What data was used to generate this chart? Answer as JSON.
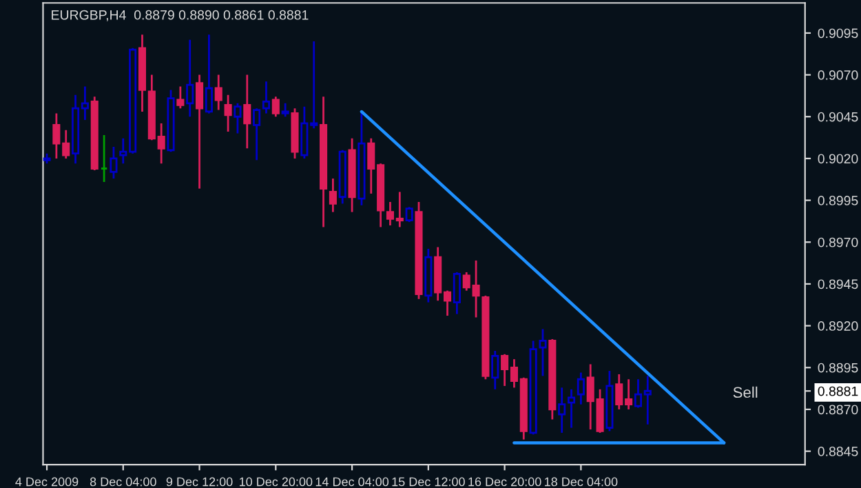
{
  "chart_data": {
    "type": "candlestick",
    "title": "EURGBP,H4  0.8879 0.8890 0.8861 0.8881",
    "categories": [
      "4 Dec 2009",
      null,
      null,
      null,
      null,
      null,
      null,
      null,
      "8 Dec 04:00",
      null,
      null,
      null,
      null,
      null,
      null,
      null,
      "9 Dec 12:00",
      null,
      null,
      null,
      null,
      null,
      null,
      null,
      "10 Dec 20:00",
      null,
      null,
      null,
      null,
      null,
      null,
      null,
      "14 Dec 04:00",
      null,
      null,
      null,
      null,
      null,
      null,
      null,
      "15 Dec 12:00",
      null,
      null,
      null,
      null,
      null,
      null,
      null,
      "16 Dec 20:00",
      null,
      null,
      null,
      null,
      null,
      null,
      null,
      "18 Dec 04:00",
      null,
      null,
      null,
      null,
      null,
      null,
      null,
      null,
      null,
      null,
      null,
      null,
      null,
      null,
      null,
      null,
      null,
      null,
      null,
      null,
      null,
      null,
      null
    ],
    "ohlc": [
      [
        0.9019,
        0.9023,
        0.9017,
        0.902
      ],
      [
        0.904,
        0.9047,
        0.902,
        0.9029
      ],
      [
        0.9029,
        0.9037,
        0.902,
        0.9022
      ],
      [
        0.9023,
        0.9058,
        0.9017,
        0.905
      ],
      [
        0.905,
        0.9063,
        0.9043,
        0.9053
      ],
      [
        0.9054,
        0.9057,
        0.9013,
        0.9014
      ],
      [
        0.9014,
        0.9034,
        0.9006,
        0.9014
      ],
      [
        0.9012,
        0.9027,
        0.9008,
        0.902
      ],
      [
        0.9022,
        0.9032,
        0.9017,
        0.9024
      ],
      [
        0.9024,
        0.9086,
        0.9023,
        0.9085
      ],
      [
        0.9086,
        0.9094,
        0.9048,
        0.9061
      ],
      [
        0.906,
        0.907,
        0.9031,
        0.9032
      ],
      [
        0.9033,
        0.9041,
        0.9017,
        0.9026
      ],
      [
        0.9025,
        0.9061,
        0.9024,
        0.9056
      ],
      [
        0.9055,
        0.9063,
        0.905,
        0.9052
      ],
      [
        0.9053,
        0.9091,
        0.9045,
        0.9064
      ],
      [
        0.9065,
        0.907,
        0.9002,
        0.905
      ],
      [
        0.9048,
        0.9094,
        0.9047,
        0.9062
      ],
      [
        0.9062,
        0.907,
        0.9049,
        0.9055
      ],
      [
        0.9052,
        0.9058,
        0.9036,
        0.9046
      ],
      [
        0.9045,
        0.9053,
        0.9035,
        0.9051
      ],
      [
        0.9052,
        0.907,
        0.9026,
        0.9041
      ],
      [
        0.904,
        0.905,
        0.9019,
        0.9049
      ],
      [
        0.905,
        0.9066,
        0.9047,
        0.9054
      ],
      [
        0.9055,
        0.9057,
        0.9045,
        0.9047
      ],
      [
        0.9047,
        0.9053,
        0.9045,
        0.9048
      ],
      [
        0.9047,
        0.905,
        0.902,
        0.9024
      ],
      [
        0.9022,
        0.9051,
        0.902,
        0.9041
      ],
      [
        0.904,
        0.909,
        0.9038,
        0.9041
      ],
      [
        0.904,
        0.9057,
        0.8979,
        0.9002
      ],
      [
        0.9,
        0.9008,
        0.8988,
        0.8993
      ],
      [
        0.8997,
        0.9025,
        0.8993,
        0.9024
      ],
      [
        0.9025,
        0.9032,
        0.8988,
        0.8997
      ],
      [
        0.8996,
        0.9048,
        0.8992,
        0.9029
      ],
      [
        0.9029,
        0.9032,
        0.8999,
        0.9014
      ],
      [
        0.9016,
        0.9017,
        0.8979,
        0.8989
      ],
      [
        0.8988,
        0.8994,
        0.898,
        0.8984
      ],
      [
        0.8984,
        0.9,
        0.8979,
        0.8983
      ],
      [
        0.8983,
        0.8991,
        0.8982,
        0.899
      ],
      [
        0.8988,
        0.8994,
        0.8936,
        0.8939
      ],
      [
        0.8938,
        0.8966,
        0.8934,
        0.8961
      ],
      [
        0.8961,
        0.8967,
        0.8935,
        0.894
      ],
      [
        0.894,
        0.8941,
        0.8926,
        0.8935
      ],
      [
        0.8934,
        0.8952,
        0.8927,
        0.8951
      ],
      [
        0.895,
        0.8952,
        0.8941,
        0.8943
      ],
      [
        0.8944,
        0.8959,
        0.8925,
        0.8938
      ],
      [
        0.8937,
        0.8938,
        0.8888,
        0.889
      ],
      [
        0.8889,
        0.8905,
        0.8882,
        0.8902
      ],
      [
        0.8902,
        0.8903,
        0.8884,
        0.8894
      ],
      [
        0.8895,
        0.89,
        0.8883,
        0.8887
      ],
      [
        0.8888,
        0.8889,
        0.8852,
        0.8857
      ],
      [
        0.8856,
        0.8911,
        0.8855,
        0.8906
      ],
      [
        0.8907,
        0.8918,
        0.889,
        0.8911
      ],
      [
        0.8911,
        0.8912,
        0.8864,
        0.887
      ],
      [
        0.8867,
        0.8883,
        0.8856,
        0.8873
      ],
      [
        0.8874,
        0.8882,
        0.8859,
        0.8877
      ],
      [
        0.8879,
        0.8892,
        0.8873,
        0.8888
      ],
      [
        0.8889,
        0.8897,
        0.8858,
        0.8875
      ],
      [
        0.8876,
        0.8882,
        0.8856,
        0.8857
      ],
      [
        0.8859,
        0.8893,
        0.8857,
        0.8884
      ],
      [
        0.8885,
        0.8891,
        0.887,
        0.8873
      ],
      [
        0.8876,
        0.8888,
        0.887,
        0.8873
      ],
      [
        0.8872,
        0.8888,
        0.8871,
        0.8879
      ],
      [
        0.8879,
        0.889,
        0.8861,
        0.8881
      ],
      null,
      null,
      null,
      null,
      null,
      null,
      null,
      null,
      null,
      null,
      null,
      null,
      null,
      null,
      null,
      null
    ],
    "colors": [
      "#0000c8",
      "#dc1e5a",
      "#dc1e5a",
      "#0000c8",
      "#0000c8",
      "#dc1e5a",
      "#00a000",
      "#0000c8",
      "#0000c8",
      "#0000c8",
      "#dc1e5a",
      "#dc1e5a",
      "#dc1e5a",
      "#0000c8",
      "#dc1e5a",
      "#0000c8",
      "#dc1e5a",
      "#0000c8",
      "#dc1e5a",
      "#dc1e5a",
      "#0000c8",
      "#dc1e5a",
      "#0000c8",
      "#0000c8",
      "#dc1e5a",
      "#0000c8",
      "#dc1e5a",
      "#0000c8",
      "#0000c8",
      "#dc1e5a",
      "#dc1e5a",
      "#0000c8",
      "#dc1e5a",
      "#0000c8",
      "#dc1e5a",
      "#dc1e5a",
      "#dc1e5a",
      "#dc1e5a",
      "#0000c8",
      "#dc1e5a",
      "#0000c8",
      "#dc1e5a",
      "#dc1e5a",
      "#0000c8",
      "#dc1e5a",
      "#dc1e5a",
      "#dc1e5a",
      "#0000c8",
      "#dc1e5a",
      "#dc1e5a",
      "#dc1e5a",
      "#0000c8",
      "#0000c8",
      "#dc1e5a",
      "#0000c8",
      "#0000c8",
      "#0000c8",
      "#dc1e5a",
      "#dc1e5a",
      "#0000c8",
      "#dc1e5a",
      "#dc1e5a",
      "#0000c8",
      "#0000c8",
      null,
      null,
      null,
      null,
      null,
      null,
      null,
      null,
      null,
      null,
      null,
      null,
      null,
      null,
      null,
      null
    ],
    "series": [
      {
        "type": "line",
        "color": "#1e90ff",
        "values": [
          null,
          null,
          null,
          null,
          null,
          null,
          null,
          null,
          null,
          null,
          null,
          null,
          null,
          null,
          null,
          null,
          null,
          null,
          null,
          null,
          null,
          null,
          null,
          null,
          null,
          null,
          null,
          null,
          null,
          null,
          null,
          null,
          null,
          0.9048,
          null,
          null,
          null,
          null,
          null,
          null,
          null,
          null,
          null,
          null,
          null,
          null,
          null,
          null,
          null,
          null,
          null,
          null,
          null,
          null,
          null,
          null,
          null,
          null,
          null,
          null,
          null,
          null,
          null,
          null,
          null,
          null,
          null,
          null,
          null,
          null,
          null,
          0.885,
          null,
          null,
          null,
          null,
          null,
          null,
          null,
          null
        ]
      },
      {
        "type": "line",
        "color": "#1e90ff",
        "values": [
          null,
          null,
          null,
          null,
          null,
          null,
          null,
          null,
          null,
          null,
          null,
          null,
          null,
          null,
          null,
          null,
          null,
          null,
          null,
          null,
          null,
          null,
          null,
          null,
          null,
          null,
          null,
          null,
          null,
          null,
          null,
          null,
          null,
          null,
          null,
          null,
          null,
          null,
          null,
          null,
          null,
          null,
          null,
          null,
          null,
          null,
          null,
          null,
          null,
          0.885,
          null,
          null,
          null,
          null,
          null,
          null,
          null,
          null,
          null,
          null,
          null,
          null,
          null,
          null,
          null,
          null,
          null,
          null,
          null,
          null,
          null,
          0.885,
          null,
          null,
          null,
          null,
          null,
          null,
          null,
          null
        ]
      }
    ],
    "ylim": [
      0.8837,
      0.9113
    ],
    "yticks": [
      {
        "value": 0.8845,
        "label": "0.8845"
      },
      {
        "value": 0.887,
        "label": "0.8870"
      },
      {
        "value": 0.8881,
        "label": "0.8881"
      },
      {
        "value": 0.8895,
        "label": "0.8895"
      },
      {
        "value": 0.892,
        "label": "0.8920"
      },
      {
        "value": 0.8945,
        "label": "0.8945"
      },
      {
        "value": 0.897,
        "label": "0.8970"
      },
      {
        "value": 0.8995,
        "label": "0.8995"
      },
      {
        "value": 0.902,
        "label": "0.9020"
      },
      {
        "value": 0.9045,
        "label": "0.9045"
      },
      {
        "value": 0.907,
        "label": "0.9070"
      },
      {
        "value": 0.9095,
        "label": "0.9095"
      }
    ],
    "annotations": [
      "Sell"
    ],
    "grid": false
  }
}
